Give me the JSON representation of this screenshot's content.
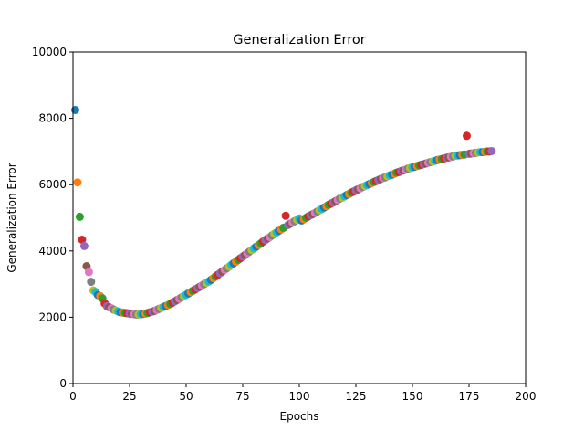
{
  "chart_data": {
    "type": "scatter",
    "title": "Generalization Error",
    "xlabel": "Epochs",
    "ylabel": "Generalization Error",
    "xlim": [
      0,
      200
    ],
    "ylim": [
      0,
      10000
    ],
    "xticks": [
      "0",
      "25",
      "50",
      "75",
      "100",
      "125",
      "150",
      "175",
      "200"
    ],
    "yticks": [
      "0",
      "2000",
      "4000",
      "6000",
      "8000",
      "10000"
    ],
    "grid": false,
    "legend": "none",
    "colors": [
      "#1f77b4",
      "#ff7f0e",
      "#2ca02c",
      "#d62728",
      "#9467bd",
      "#8c564b",
      "#e377c2",
      "#7f7f7f",
      "#bcbd22",
      "#17becf"
    ],
    "x": [
      1,
      2,
      3,
      4,
      5,
      6,
      7,
      8,
      9,
      10,
      11,
      12,
      13,
      14,
      15,
      16,
      17,
      18,
      19,
      20,
      21,
      22,
      23,
      24,
      25,
      26,
      27,
      28,
      29,
      30,
      31,
      32,
      33,
      34,
      35,
      36,
      37,
      38,
      39,
      40,
      41,
      42,
      43,
      44,
      45,
      46,
      47,
      48,
      49,
      50,
      51,
      52,
      53,
      54,
      55,
      56,
      57,
      58,
      59,
      60,
      61,
      62,
      63,
      64,
      65,
      66,
      67,
      68,
      69,
      70,
      71,
      72,
      73,
      74,
      75,
      76,
      77,
      78,
      79,
      80,
      81,
      82,
      83,
      84,
      85,
      86,
      87,
      88,
      89,
      90,
      91,
      92,
      93,
      94,
      95,
      96,
      97,
      98,
      99,
      100,
      101,
      102,
      103,
      104,
      105,
      106,
      107,
      108,
      109,
      110,
      111,
      112,
      113,
      114,
      115,
      116,
      117,
      118,
      119,
      120,
      121,
      122,
      123,
      124,
      125,
      126,
      127,
      128,
      129,
      130,
      131,
      132,
      133,
      134,
      135,
      136,
      137,
      138,
      139,
      140,
      141,
      142,
      143,
      144,
      145,
      146,
      147,
      148,
      149,
      150,
      151,
      152,
      153,
      154,
      155,
      156,
      157,
      158,
      159,
      160,
      161,
      162,
      163,
      164,
      165,
      166,
      167,
      168,
      169,
      170,
      171,
      172,
      173,
      174,
      175,
      176,
      177,
      178,
      179,
      180,
      181,
      182,
      183,
      184,
      185
    ],
    "y": [
      8250,
      6070,
      5030,
      4340,
      4150,
      3540,
      3360,
      3070,
      2810,
      2760,
      2670,
      2640,
      2570,
      2420,
      2330,
      2300,
      2270,
      2230,
      2200,
      2170,
      2150,
      2140,
      2130,
      2120,
      2110,
      2100,
      2090,
      2080,
      2080,
      2090,
      2100,
      2110,
      2130,
      2150,
      2170,
      2190,
      2220,
      2250,
      2280,
      2310,
      2340,
      2370,
      2400,
      2440,
      2480,
      2520,
      2560,
      2600,
      2640,
      2680,
      2720,
      2760,
      2800,
      2840,
      2880,
      2920,
      2960,
      3000,
      3040,
      3080,
      3130,
      3180,
      3230,
      3280,
      3330,
      3380,
      3430,
      3480,
      3530,
      3580,
      3630,
      3680,
      3730,
      3780,
      3830,
      3880,
      3930,
      3980,
      4030,
      4080,
      4130,
      4180,
      4230,
      4280,
      4330,
      4380,
      4420,
      4470,
      4520,
      4560,
      4610,
      4650,
      4700,
      5060,
      4780,
      4820,
      4860,
      4900,
      4940,
      4980,
      4920,
      4960,
      5000,
      5040,
      5080,
      5110,
      5150,
      5190,
      5230,
      5270,
      5310,
      5350,
      5390,
      5430,
      5460,
      5500,
      5540,
      5580,
      5610,
      5650,
      5690,
      5720,
      5760,
      5790,
      5830,
      5860,
      5890,
      5930,
      5960,
      5990,
      6020,
      6050,
      6080,
      6110,
      6140,
      6170,
      6200,
      6220,
      6250,
      6280,
      6300,
      6330,
      6360,
      6380,
      6410,
      6430,
      6450,
      6480,
      6500,
      6520,
      6540,
      6560,
      6580,
      6600,
      6620,
      6640,
      6660,
      6680,
      6700,
      6720,
      6740,
      6760,
      6770,
      6790,
      6810,
      6820,
      6840,
      6850,
      6870,
      6880,
      6890,
      6900,
      6910,
      7470,
      6930,
      6940,
      6950,
      6960,
      6970,
      6980,
      6980,
      6990,
      7000,
      7000,
      7010
    ]
  }
}
